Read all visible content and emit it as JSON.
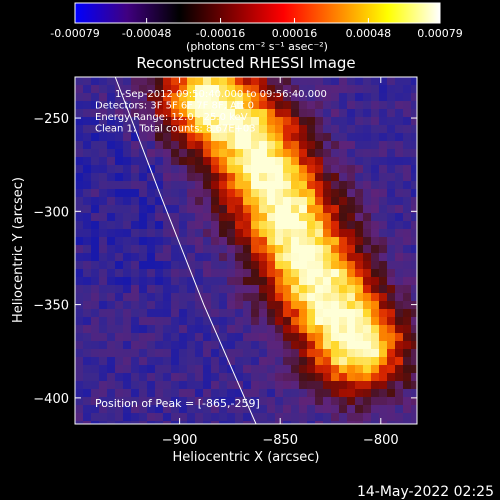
{
  "colorbar": {
    "ticks": [
      "-0.00079",
      "-0.00048",
      "-0.00016",
      "0.00016",
      "0.00048",
      "0.00079"
    ],
    "tick_values": [
      -0.00079,
      -0.00048,
      -0.00016,
      0.00016,
      0.00048,
      0.00079
    ],
    "units": "(photons cm⁻² s⁻¹ asec⁻²)",
    "colormap": [
      "#0000ff",
      "#400080",
      "#000000",
      "#800000",
      "#ff0000",
      "#ff8000",
      "#ffff00",
      "#ffffff"
    ]
  },
  "chart_data": {
    "type": "heatmap",
    "title": "Reconstructed RHESSI Image",
    "xlabel": "Heliocentric X (arcsec)",
    "ylabel": "Heliocentric Y (arcsec)",
    "xlim": [
      -952,
      -782
    ],
    "ylim": [
      -414,
      -228
    ],
    "xticks": [
      -900,
      -850,
      -800
    ],
    "yticks": [
      -250,
      -300,
      -350,
      -400
    ],
    "annotations": [
      "1-Sep-2012 09:50:40.000 to 09:56:40.000",
      "Detectors: 3F 5F 6F 7F 8F, Att 0",
      "Energy Range: 12.0 - 25.0 keV",
      "Clean 1: Total counts: 8.67E+03"
    ],
    "peak_label": "Position of Peak = [-865,-259]",
    "peak": [
      -865,
      -259
    ],
    "limb_arc": [
      [
        -932,
        -228
      ],
      [
        -910,
        -290
      ],
      [
        -888,
        -350
      ],
      [
        -862,
        -414
      ]
    ],
    "emission_ridge": [
      [
        -885,
        -240
      ],
      [
        -865,
        -262
      ],
      [
        -848,
        -300
      ],
      [
        -830,
        -340
      ],
      [
        -812,
        -372
      ]
    ],
    "timestamp": "14-May-2022 02:25"
  }
}
